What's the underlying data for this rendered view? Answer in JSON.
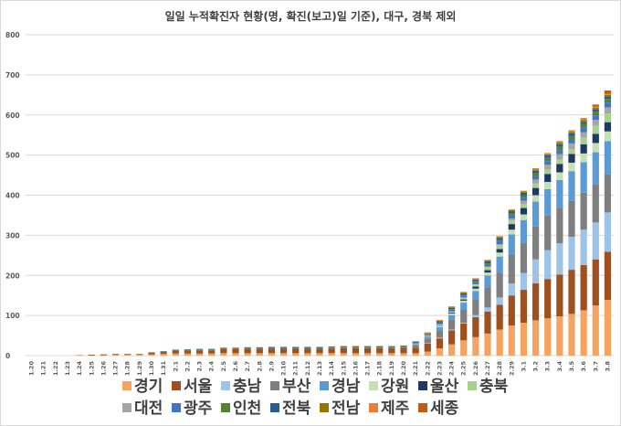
{
  "chart_data": {
    "type": "bar",
    "stacked": true,
    "title": "일일 누적확진자 현황(명, 확진(보고)일 기준), 대구, 경북 제외",
    "ylim": [
      0,
      800
    ],
    "yticks": [
      0,
      100,
      200,
      300,
      400,
      500,
      600,
      700,
      800
    ],
    "grid": true,
    "legend_position": "bottom",
    "categories": [
      "1.20",
      "1.21",
      "1.22",
      "1.23",
      "1.24",
      "1.25",
      "1.26",
      "1.27",
      "1.28",
      "1.29",
      "1.30",
      "1.31",
      "2.1",
      "2.2",
      "2.3",
      "2.4",
      "2.5",
      "2.6",
      "2.7",
      "2.8",
      "2.9",
      "2.10",
      "2.11",
      "2.12",
      "2.13",
      "2.14",
      "2.15",
      "2.16",
      "2.17",
      "2.18",
      "2.19",
      "2.20",
      "2.21",
      "2.22",
      "2.23",
      "2.24",
      "2.25",
      "2.26",
      "2.27",
      "2.28",
      "2.29",
      "3.1",
      "3.2",
      "3.3",
      "3.4",
      "3.5",
      "3.6",
      "3.7",
      "3.8"
    ],
    "series": [
      {
        "name": "경기",
        "color": "#f4a460",
        "values": [
          0,
          0,
          0,
          0,
          0,
          0,
          1,
          2,
          2,
          2,
          3,
          4,
          5,
          5,
          5,
          5,
          6,
          6,
          6,
          6,
          6,
          6,
          6,
          6,
          6,
          6,
          6,
          6,
          6,
          6,
          6,
          6,
          6,
          10,
          18,
          28,
          38,
          46,
          55,
          65,
          75,
          82,
          88,
          93,
          98,
          104,
          113,
          125,
          139
        ]
      },
      {
        "name": "서울",
        "color": "#a0501e",
        "values": [
          0,
          0,
          0,
          0,
          1,
          2,
          2,
          2,
          2,
          2,
          4,
          5,
          8,
          8,
          8,
          8,
          10,
          10,
          10,
          10,
          11,
          11,
          11,
          11,
          11,
          12,
          13,
          13,
          13,
          13,
          13,
          14,
          14,
          20,
          25,
          35,
          42,
          50,
          55,
          62,
          75,
          82,
          92,
          98,
          104,
          110,
          113,
          115,
          120
        ]
      },
      {
        "name": "충남",
        "color": "#9dc3e6",
        "values": [
          0,
          0,
          0,
          0,
          0,
          0,
          0,
          0,
          0,
          0,
          0,
          0,
          0,
          0,
          0,
          0,
          0,
          0,
          0,
          0,
          0,
          0,
          0,
          0,
          0,
          0,
          0,
          0,
          0,
          0,
          0,
          0,
          0,
          1,
          2,
          2,
          2,
          5,
          10,
          18,
          30,
          42,
          60,
          72,
          78,
          82,
          88,
          92,
          98
        ]
      },
      {
        "name": "부산",
        "color": "#7f7f7f",
        "values": [
          0,
          0,
          0,
          0,
          0,
          0,
          0,
          0,
          0,
          0,
          0,
          0,
          0,
          0,
          0,
          0,
          0,
          0,
          0,
          0,
          0,
          0,
          0,
          0,
          0,
          0,
          0,
          0,
          0,
          0,
          0,
          0,
          6,
          11,
          18,
          24,
          32,
          38,
          50,
          62,
          72,
          76,
          82,
          86,
          88,
          90,
          92,
          95,
          96
        ]
      },
      {
        "name": "경남",
        "color": "#5b9bd5",
        "values": [
          0,
          0,
          0,
          0,
          0,
          0,
          0,
          0,
          0,
          0,
          0,
          0,
          0,
          0,
          0,
          0,
          0,
          0,
          0,
          0,
          0,
          0,
          0,
          0,
          0,
          0,
          0,
          0,
          0,
          0,
          0,
          0,
          3,
          5,
          8,
          12,
          18,
          22,
          30,
          40,
          50,
          56,
          62,
          66,
          70,
          74,
          76,
          80,
          82
        ]
      },
      {
        "name": "강원",
        "color": "#c5e0b4",
        "values": [
          0,
          0,
          0,
          0,
          0,
          0,
          0,
          0,
          0,
          0,
          0,
          0,
          0,
          0,
          0,
          0,
          0,
          0,
          0,
          0,
          0,
          0,
          0,
          0,
          0,
          0,
          0,
          0,
          0,
          0,
          0,
          0,
          1,
          2,
          3,
          4,
          5,
          6,
          7,
          10,
          12,
          14,
          16,
          18,
          19,
          21,
          22,
          23,
          24
        ]
      },
      {
        "name": "울산",
        "color": "#203864",
        "values": [
          0,
          0,
          0,
          0,
          0,
          0,
          0,
          0,
          0,
          0,
          0,
          0,
          0,
          0,
          0,
          0,
          0,
          0,
          0,
          0,
          0,
          0,
          0,
          0,
          0,
          0,
          0,
          0,
          0,
          0,
          0,
          0,
          0,
          1,
          1,
          2,
          3,
          5,
          6,
          9,
          14,
          16,
          18,
          20,
          21,
          22,
          23,
          23,
          23
        ]
      },
      {
        "name": "충북",
        "color": "#a9d18e",
        "values": [
          0,
          0,
          0,
          0,
          0,
          0,
          0,
          0,
          0,
          0,
          0,
          0,
          0,
          0,
          0,
          0,
          0,
          0,
          0,
          0,
          0,
          0,
          0,
          0,
          0,
          0,
          0,
          0,
          0,
          0,
          0,
          0,
          0,
          1,
          3,
          3,
          5,
          6,
          8,
          9,
          9,
          10,
          11,
          11,
          11,
          12,
          16,
          20,
          22
        ]
      },
      {
        "name": "대전",
        "color": "#a5a5a5",
        "values": [
          0,
          0,
          0,
          0,
          0,
          0,
          0,
          0,
          0,
          0,
          0,
          0,
          0,
          0,
          0,
          0,
          0,
          0,
          0,
          0,
          0,
          0,
          0,
          0,
          0,
          0,
          0,
          0,
          0,
          0,
          0,
          0,
          0,
          0,
          0,
          0,
          0,
          0,
          1,
          3,
          5,
          8,
          10,
          12,
          13,
          14,
          14,
          15,
          15
        ]
      },
      {
        "name": "광주",
        "color": "#4472c4",
        "values": [
          0,
          0,
          0,
          0,
          0,
          0,
          0,
          0,
          0,
          0,
          0,
          0,
          0,
          1,
          1,
          1,
          1,
          1,
          1,
          1,
          1,
          1,
          1,
          1,
          1,
          1,
          1,
          1,
          1,
          1,
          1,
          1,
          1,
          1,
          4,
          5,
          5,
          5,
          6,
          7,
          8,
          8,
          9,
          9,
          10,
          10,
          11,
          11,
          12
        ]
      },
      {
        "name": "인천",
        "color": "#548235",
        "values": [
          0,
          0,
          0,
          0,
          0,
          0,
          0,
          0,
          0,
          0,
          0,
          1,
          1,
          1,
          1,
          1,
          1,
          1,
          1,
          1,
          1,
          1,
          1,
          1,
          1,
          1,
          1,
          1,
          1,
          1,
          1,
          1,
          1,
          1,
          1,
          1,
          1,
          2,
          2,
          3,
          4,
          6,
          7,
          8,
          9,
          9,
          9,
          9,
          9
        ]
      },
      {
        "name": "전북",
        "color": "#255e91",
        "values": [
          0,
          0,
          0,
          0,
          0,
          0,
          0,
          0,
          0,
          0,
          1,
          1,
          1,
          1,
          1,
          1,
          1,
          1,
          2,
          2,
          2,
          2,
          2,
          2,
          2,
          2,
          2,
          2,
          2,
          2,
          2,
          2,
          2,
          2,
          3,
          3,
          4,
          4,
          5,
          5,
          6,
          6,
          6,
          6,
          6,
          6,
          6,
          6,
          6
        ]
      },
      {
        "name": "전남",
        "color": "#997300",
        "values": [
          0,
          0,
          0,
          0,
          0,
          0,
          0,
          0,
          0,
          0,
          0,
          0,
          0,
          0,
          1,
          1,
          1,
          1,
          1,
          1,
          1,
          1,
          1,
          1,
          1,
          1,
          1,
          1,
          1,
          1,
          1,
          1,
          1,
          1,
          1,
          2,
          2,
          2,
          2,
          3,
          3,
          3,
          3,
          3,
          4,
          4,
          4,
          4,
          4
        ]
      },
      {
        "name": "제주",
        "color": "#ed7d31",
        "values": [
          0,
          0,
          0,
          0,
          0,
          0,
          0,
          0,
          0,
          0,
          0,
          0,
          0,
          0,
          0,
          0,
          0,
          0,
          0,
          0,
          0,
          0,
          0,
          0,
          0,
          0,
          0,
          0,
          0,
          0,
          0,
          0,
          1,
          2,
          2,
          2,
          2,
          2,
          2,
          2,
          2,
          2,
          2,
          2,
          3,
          3,
          3,
          3,
          3
        ]
      },
      {
        "name": "세종",
        "color": "#c55a11",
        "values": [
          0,
          0,
          0,
          0,
          0,
          0,
          0,
          0,
          0,
          0,
          0,
          0,
          0,
          0,
          0,
          0,
          0,
          0,
          0,
          0,
          0,
          0,
          0,
          0,
          0,
          0,
          0,
          0,
          0,
          0,
          0,
          0,
          0,
          0,
          0,
          0,
          0,
          0,
          0,
          0,
          0,
          0,
          1,
          1,
          1,
          1,
          2,
          5,
          8
        ]
      }
    ]
  }
}
